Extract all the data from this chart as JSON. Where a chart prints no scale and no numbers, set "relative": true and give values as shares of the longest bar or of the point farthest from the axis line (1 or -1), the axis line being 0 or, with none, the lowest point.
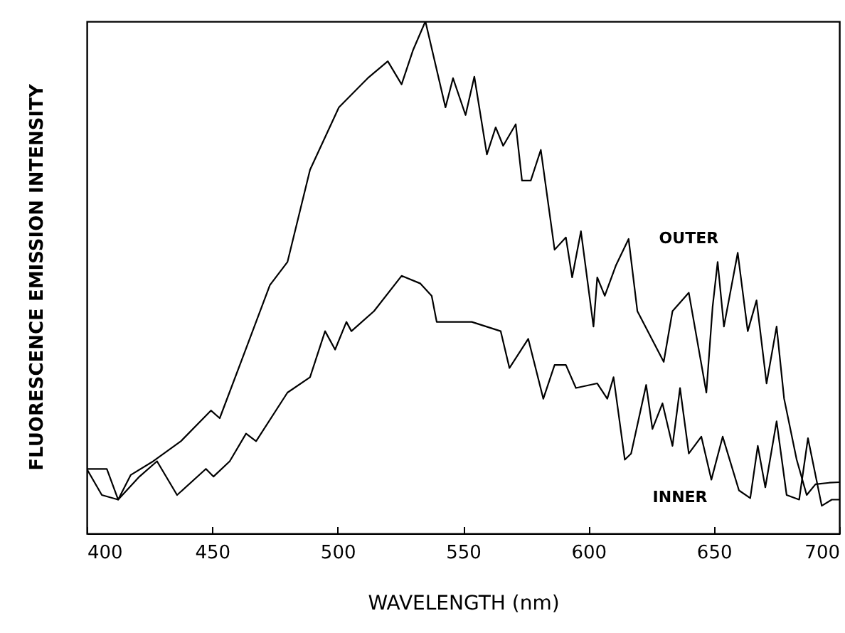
{
  "chart_data": {
    "type": "line",
    "xlabel": "WAVELENGTH (nm)",
    "ylabel": "FLUORESCENCE EMISSION INTENSITY",
    "relative": true,
    "xlim": [
      400,
      700
    ],
    "xticks": [
      400,
      450,
      500,
      550,
      600,
      650,
      700
    ],
    "grid": false,
    "marker": "none",
    "line_style": "solid",
    "series": [
      {
        "name": "OUTER",
        "color": "#000000",
        "x": [
          400,
          408,
          412.5,
          417.5,
          426.5,
          437.5,
          449.5,
          453,
          464.5,
          473,
          480,
          489,
          500.5,
          512,
          520,
          525.5,
          530,
          535,
          543,
          546,
          551,
          554.5,
          559.5,
          563,
          566,
          571,
          573.5,
          577,
          581,
          586.5,
          591,
          593.5,
          597,
          602,
          603.5,
          606.5,
          611,
          616,
          619.5,
          630,
          633.5,
          640,
          647,
          649.5,
          651.5,
          654,
          659.5,
          663.5,
          667,
          671,
          675,
          678,
          683,
          687,
          690.5,
          696,
          700
        ],
        "values": [
          0.126,
          0.126,
          0.066,
          0.114,
          0.141,
          0.18,
          0.24,
          0.225,
          0.374,
          0.485,
          0.53,
          0.71,
          0.832,
          0.889,
          0.922,
          0.877,
          0.943,
          1,
          0.832,
          0.889,
          0.817,
          0.892,
          0.74,
          0.793,
          0.757,
          0.799,
          0.689,
          0.689,
          0.749,
          0.554,
          0.578,
          0.5,
          0.59,
          0.404,
          0.5,
          0.464,
          0.524,
          0.575,
          0.434,
          0.335,
          0.434,
          0.47,
          0.275,
          0.443,
          0.53,
          0.404,
          0.548,
          0.395,
          0.455,
          0.293,
          0.404,
          0.263,
          0.144,
          0.075,
          0.096,
          0.099,
          0.1
        ]
      },
      {
        "name": "INNER",
        "color": "#000000",
        "x": [
          400,
          406,
          412.5,
          421,
          428,
          436,
          447.5,
          450.5,
          457,
          463.5,
          467.5,
          480,
          489,
          495,
          499,
          503.5,
          505.5,
          514.5,
          525.5,
          533,
          537.5,
          539.5,
          546,
          553.5,
          565,
          568.5,
          576,
          582,
          586.5,
          591,
          595,
          603.5,
          607.5,
          610,
          614.5,
          617,
          623,
          625.5,
          629.5,
          633.5,
          636.5,
          640,
          645,
          649,
          653.5,
          660,
          664.5,
          667.5,
          670.5,
          675,
          679,
          684,
          687.5,
          693,
          697,
          700
        ],
        "values": [
          0.126,
          0.075,
          0.066,
          0.111,
          0.141,
          0.075,
          0.126,
          0.111,
          0.141,
          0.195,
          0.18,
          0.275,
          0.305,
          0.395,
          0.359,
          0.413,
          0.395,
          0.434,
          0.503,
          0.488,
          0.464,
          0.413,
          0.413,
          0.413,
          0.395,
          0.323,
          0.38,
          0.263,
          0.329,
          0.329,
          0.284,
          0.293,
          0.263,
          0.305,
          0.144,
          0.156,
          0.29,
          0.204,
          0.254,
          0.171,
          0.284,
          0.156,
          0.189,
          0.105,
          0.189,
          0.084,
          0.069,
          0.171,
          0.09,
          0.219,
          0.075,
          0.066,
          0.186,
          0.054,
          0.066,
          0.066
        ]
      }
    ]
  }
}
